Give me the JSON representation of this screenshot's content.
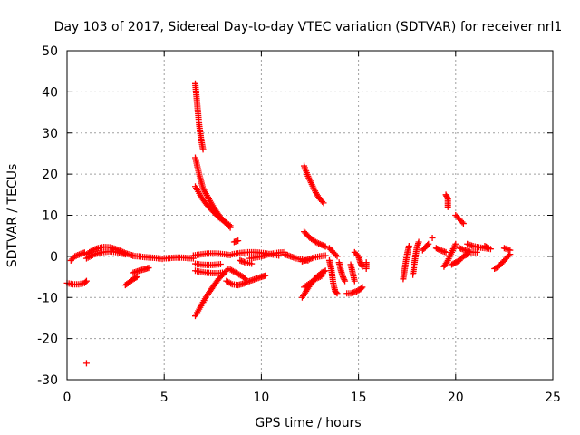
{
  "chart_data": {
    "type": "scatter",
    "title": "Day 103 of 2017, Sidereal Day-to-day VTEC variation (SDTVAR) for receiver nrl1",
    "xlabel": "GPS time / hours",
    "ylabel": "SDTVAR / TECUs",
    "xlim": [
      0,
      25
    ],
    "ylim": [
      -30,
      50
    ],
    "xticks": [
      0,
      5,
      10,
      15,
      20,
      25
    ],
    "yticks": [
      -30,
      -20,
      -10,
      0,
      10,
      20,
      30,
      40,
      50
    ],
    "grid": true,
    "marker": "+",
    "color": "#ff0000",
    "series": [
      {
        "name": "sdtvar",
        "note": "values estimated from figure; each row is an arc of observations [x_hours, y_tecu]",
        "arcs": [
          [
            [
              0.0,
              -6.5
            ],
            [
              0.3,
              -6.8
            ],
            [
              0.6,
              -6.8
            ],
            [
              0.9,
              -6.5
            ],
            [
              1.0,
              -6.0
            ]
          ],
          [
            [
              0.2,
              -1.0
            ],
            [
              0.4,
              0.0
            ],
            [
              0.7,
              0.6
            ],
            [
              0.9,
              0.9
            ]
          ],
          [
            [
              1.0,
              -26.0
            ]
          ],
          [
            [
              1.0,
              0.5
            ],
            [
              1.3,
              1.5
            ],
            [
              1.6,
              2.0
            ],
            [
              1.9,
              2.3
            ],
            [
              2.2,
              2.2
            ],
            [
              2.5,
              1.8
            ],
            [
              2.8,
              1.2
            ],
            [
              3.1,
              0.6
            ],
            [
              3.4,
              0.2
            ]
          ],
          [
            [
              1.0,
              -0.5
            ],
            [
              1.4,
              0.5
            ],
            [
              1.8,
              1.0
            ],
            [
              2.2,
              1.2
            ],
            [
              2.6,
              1.0
            ],
            [
              3.0,
              0.5
            ]
          ],
          [
            [
              3.4,
              0.1
            ],
            [
              3.7,
              0.0
            ],
            [
              4.0,
              -0.2
            ],
            [
              4.3,
              -0.3
            ],
            [
              4.6,
              -0.4
            ],
            [
              4.9,
              -0.6
            ]
          ],
          [
            [
              3.0,
              -7.0
            ],
            [
              3.2,
              -6.3
            ],
            [
              3.4,
              -5.6
            ],
            [
              3.6,
              -5.0
            ]
          ],
          [
            [
              3.4,
              -4.0
            ],
            [
              3.7,
              -3.5
            ],
            [
              4.0,
              -3.1
            ],
            [
              4.2,
              -2.8
            ]
          ],
          [
            [
              5.0,
              -0.5
            ],
            [
              5.3,
              -0.4
            ],
            [
              5.6,
              -0.3
            ],
            [
              5.9,
              -0.3
            ],
            [
              6.2,
              -0.4
            ],
            [
              6.5,
              -0.5
            ]
          ],
          [
            [
              6.6,
              42.0
            ],
            [
              6.7,
              37.0
            ],
            [
              6.8,
              32.0
            ],
            [
              6.9,
              28.5
            ],
            [
              7.0,
              26.0
            ]
          ],
          [
            [
              6.6,
              24.0
            ],
            [
              6.8,
              20.0
            ],
            [
              7.0,
              16.5
            ],
            [
              7.3,
              14.0
            ],
            [
              7.6,
              11.5
            ],
            [
              7.9,
              9.5
            ],
            [
              8.2,
              8.0
            ],
            [
              8.4,
              7.0
            ]
          ],
          [
            [
              6.6,
              17.0
            ],
            [
              6.9,
              14.5
            ],
            [
              7.2,
              12.5
            ],
            [
              7.5,
              11.0
            ],
            [
              7.8,
              9.5
            ],
            [
              8.1,
              8.5
            ],
            [
              8.4,
              7.5
            ]
          ],
          [
            [
              6.6,
              -14.5
            ],
            [
              6.9,
              -12.0
            ],
            [
              7.2,
              -9.5
            ],
            [
              7.5,
              -7.5
            ],
            [
              7.8,
              -5.5
            ],
            [
              8.1,
              -4.0
            ],
            [
              8.3,
              -3.0
            ]
          ],
          [
            [
              6.6,
              -3.5
            ],
            [
              6.9,
              -3.8
            ],
            [
              7.2,
              -4.0
            ],
            [
              7.5,
              -4.1
            ],
            [
              7.8,
              -4.1
            ],
            [
              8.0,
              -4.0
            ]
          ],
          [
            [
              6.5,
              0.2
            ],
            [
              6.9,
              0.5
            ],
            [
              7.3,
              0.7
            ],
            [
              7.7,
              0.7
            ],
            [
              8.1,
              0.5
            ],
            [
              8.4,
              0.3
            ]
          ],
          [
            [
              6.6,
              -1.8
            ],
            [
              6.9,
              -2.0
            ],
            [
              7.2,
              -2.1
            ],
            [
              7.5,
              -2.1
            ],
            [
              7.9,
              -1.9
            ]
          ],
          [
            [
              8.4,
              -3.2
            ],
            [
              8.7,
              -4.0
            ],
            [
              9.0,
              -4.8
            ],
            [
              9.2,
              -5.5
            ]
          ],
          [
            [
              8.2,
              -6.0
            ],
            [
              8.5,
              -6.8
            ],
            [
              8.8,
              -7.0
            ],
            [
              9.1,
              -6.6
            ],
            [
              9.4,
              -6.0
            ],
            [
              9.7,
              -5.5
            ],
            [
              10.0,
              -5.0
            ],
            [
              10.2,
              -4.7
            ]
          ],
          [
            [
              8.6,
              3.5
            ],
            [
              8.8,
              3.8
            ]
          ],
          [
            [
              8.5,
              0.5
            ],
            [
              8.9,
              0.8
            ],
            [
              9.3,
              1.0
            ],
            [
              9.7,
              1.0
            ],
            [
              10.1,
              0.8
            ],
            [
              10.5,
              0.5
            ],
            [
              10.9,
              0.2
            ]
          ],
          [
            [
              8.9,
              -1.0
            ],
            [
              9.2,
              -1.5
            ],
            [
              9.5,
              -1.8
            ]
          ],
          [
            [
              9.4,
              -0.5
            ],
            [
              9.7,
              -0.3
            ],
            [
              10.0,
              0.0
            ],
            [
              10.3,
              0.4
            ],
            [
              10.6,
              0.7
            ],
            [
              10.9,
              0.9
            ],
            [
              11.2,
              1.0
            ]
          ],
          [
            [
              11.2,
              0.5
            ],
            [
              11.5,
              0.0
            ],
            [
              11.8,
              -0.5
            ],
            [
              12.1,
              -0.8
            ],
            [
              12.4,
              -1.0
            ]
          ],
          [
            [
              12.1,
              -1.2
            ],
            [
              12.4,
              -0.8
            ],
            [
              12.7,
              -0.3
            ],
            [
              13.0,
              0.0
            ],
            [
              13.3,
              0.2
            ]
          ],
          [
            [
              12.2,
              22.0
            ],
            [
              12.4,
              19.5
            ],
            [
              12.6,
              17.5
            ],
            [
              12.8,
              15.5
            ],
            [
              13.0,
              14.0
            ],
            [
              13.2,
              13.0
            ]
          ],
          [
            [
              12.2,
              6.0
            ],
            [
              12.5,
              4.5
            ],
            [
              12.8,
              3.5
            ],
            [
              13.1,
              2.8
            ],
            [
              13.3,
              2.4
            ]
          ],
          [
            [
              12.1,
              -10.0
            ],
            [
              12.3,
              -8.5
            ],
            [
              12.5,
              -7.0
            ],
            [
              12.7,
              -5.8
            ],
            [
              12.9,
              -4.8
            ],
            [
              13.1,
              -4.0
            ],
            [
              13.3,
              -3.5
            ]
          ],
          [
            [
              12.2,
              -7.5
            ],
            [
              12.5,
              -6.5
            ],
            [
              12.8,
              -5.5
            ],
            [
              13.1,
              -4.8
            ]
          ],
          [
            [
              13.5,
              -1.0
            ],
            [
              13.6,
              -3.0
            ],
            [
              13.7,
              -6.5
            ],
            [
              13.8,
              -8.5
            ],
            [
              13.9,
              -9.0
            ]
          ],
          [
            [
              13.5,
              2.0
            ],
            [
              13.7,
              1.0
            ],
            [
              13.9,
              0.0
            ]
          ],
          [
            [
              14.0,
              -1.5
            ],
            [
              14.1,
              -3.5
            ],
            [
              14.2,
              -5.0
            ],
            [
              14.3,
              -6.0
            ]
          ],
          [
            [
              14.4,
              -9.0
            ],
            [
              14.6,
              -9.0
            ],
            [
              14.9,
              -8.5
            ],
            [
              15.1,
              -8.0
            ],
            [
              15.2,
              -7.5
            ]
          ],
          [
            [
              14.6,
              -2.0
            ],
            [
              14.7,
              -4.0
            ],
            [
              14.8,
              -6.0
            ]
          ],
          [
            [
              14.8,
              1.0
            ],
            [
              15.0,
              0.0
            ],
            [
              15.1,
              -1.5
            ],
            [
              15.2,
              -2.5
            ]
          ],
          [
            [
              15.4,
              -1.5
            ],
            [
              15.4,
              -3.0
            ]
          ],
          [
            [
              17.3,
              -5.5
            ],
            [
              17.4,
              -2.5
            ],
            [
              17.5,
              0.5
            ],
            [
              17.6,
              2.5
            ]
          ],
          [
            [
              17.8,
              -4.5
            ],
            [
              17.9,
              -1.0
            ],
            [
              18.0,
              2.0
            ],
            [
              18.1,
              3.5
            ]
          ],
          [
            [
              18.3,
              1.5
            ],
            [
              18.5,
              2.5
            ],
            [
              18.6,
              3.0
            ]
          ],
          [
            [
              18.8,
              4.5
            ]
          ],
          [
            [
              19.0,
              2.0
            ],
            [
              19.2,
              1.5
            ],
            [
              19.5,
              1.0
            ]
          ],
          [
            [
              19.5,
              15.0
            ],
            [
              19.6,
              14.0
            ],
            [
              19.6,
              12.0
            ]
          ],
          [
            [
              19.4,
              -2.5
            ],
            [
              19.6,
              -1.0
            ],
            [
              19.8,
              1.0
            ],
            [
              20.0,
              3.0
            ]
          ],
          [
            [
              19.8,
              -2.0
            ],
            [
              20.0,
              -1.5
            ],
            [
              20.2,
              -1.0
            ],
            [
              20.4,
              0.0
            ],
            [
              20.6,
              0.5
            ]
          ],
          [
            [
              20.0,
              10.0
            ],
            [
              20.2,
              9.0
            ],
            [
              20.4,
              8.0
            ]
          ],
          [
            [
              20.2,
              2.0
            ],
            [
              20.5,
              1.5
            ],
            [
              20.8,
              1.0
            ],
            [
              21.1,
              1.0
            ]
          ],
          [
            [
              20.6,
              3.0
            ],
            [
              20.9,
              2.5
            ],
            [
              21.2,
              2.2
            ],
            [
              21.5,
              2.0
            ],
            [
              21.8,
              1.8
            ]
          ],
          [
            [
              21.5,
              2.5
            ],
            [
              21.7,
              2.0
            ]
          ],
          [
            [
              22.0,
              -3.0
            ],
            [
              22.2,
              -2.5
            ],
            [
              22.4,
              -1.5
            ],
            [
              22.6,
              -0.5
            ],
            [
              22.8,
              0.5
            ]
          ],
          [
            [
              22.5,
              2.0
            ],
            [
              22.8,
              1.5
            ]
          ]
        ]
      }
    ]
  }
}
